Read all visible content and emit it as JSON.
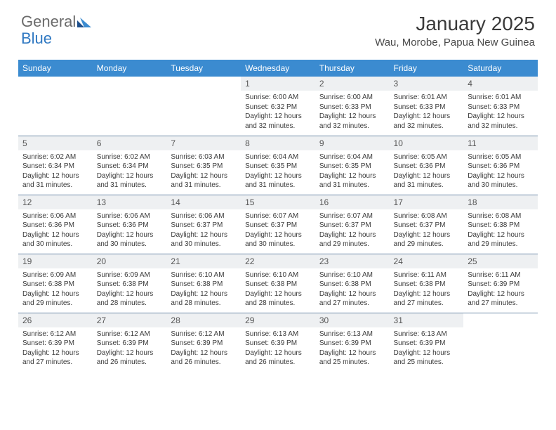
{
  "logo": {
    "text1": "General",
    "text2": "Blue"
  },
  "title": "January 2025",
  "location": "Wau, Morobe, Papua New Guinea",
  "colors": {
    "header_bg": "#3b8bd0",
    "header_text": "#ffffff",
    "daynum_bg": "#eef0f2",
    "row_border": "#6d8aa8",
    "logo_gray": "#6b6b6b",
    "logo_blue": "#2f78c2"
  },
  "weekdays": [
    "Sunday",
    "Monday",
    "Tuesday",
    "Wednesday",
    "Thursday",
    "Friday",
    "Saturday"
  ],
  "weeks": [
    [
      null,
      null,
      null,
      {
        "n": "1",
        "sr": "6:00 AM",
        "ss": "6:32 PM",
        "dl": "12 hours and 32 minutes."
      },
      {
        "n": "2",
        "sr": "6:00 AM",
        "ss": "6:33 PM",
        "dl": "12 hours and 32 minutes."
      },
      {
        "n": "3",
        "sr": "6:01 AM",
        "ss": "6:33 PM",
        "dl": "12 hours and 32 minutes."
      },
      {
        "n": "4",
        "sr": "6:01 AM",
        "ss": "6:33 PM",
        "dl": "12 hours and 32 minutes."
      }
    ],
    [
      {
        "n": "5",
        "sr": "6:02 AM",
        "ss": "6:34 PM",
        "dl": "12 hours and 31 minutes."
      },
      {
        "n": "6",
        "sr": "6:02 AM",
        "ss": "6:34 PM",
        "dl": "12 hours and 31 minutes."
      },
      {
        "n": "7",
        "sr": "6:03 AM",
        "ss": "6:35 PM",
        "dl": "12 hours and 31 minutes."
      },
      {
        "n": "8",
        "sr": "6:04 AM",
        "ss": "6:35 PM",
        "dl": "12 hours and 31 minutes."
      },
      {
        "n": "9",
        "sr": "6:04 AM",
        "ss": "6:35 PM",
        "dl": "12 hours and 31 minutes."
      },
      {
        "n": "10",
        "sr": "6:05 AM",
        "ss": "6:36 PM",
        "dl": "12 hours and 31 minutes."
      },
      {
        "n": "11",
        "sr": "6:05 AM",
        "ss": "6:36 PM",
        "dl": "12 hours and 30 minutes."
      }
    ],
    [
      {
        "n": "12",
        "sr": "6:06 AM",
        "ss": "6:36 PM",
        "dl": "12 hours and 30 minutes."
      },
      {
        "n": "13",
        "sr": "6:06 AM",
        "ss": "6:36 PM",
        "dl": "12 hours and 30 minutes."
      },
      {
        "n": "14",
        "sr": "6:06 AM",
        "ss": "6:37 PM",
        "dl": "12 hours and 30 minutes."
      },
      {
        "n": "15",
        "sr": "6:07 AM",
        "ss": "6:37 PM",
        "dl": "12 hours and 30 minutes."
      },
      {
        "n": "16",
        "sr": "6:07 AM",
        "ss": "6:37 PM",
        "dl": "12 hours and 29 minutes."
      },
      {
        "n": "17",
        "sr": "6:08 AM",
        "ss": "6:37 PM",
        "dl": "12 hours and 29 minutes."
      },
      {
        "n": "18",
        "sr": "6:08 AM",
        "ss": "6:38 PM",
        "dl": "12 hours and 29 minutes."
      }
    ],
    [
      {
        "n": "19",
        "sr": "6:09 AM",
        "ss": "6:38 PM",
        "dl": "12 hours and 29 minutes."
      },
      {
        "n": "20",
        "sr": "6:09 AM",
        "ss": "6:38 PM",
        "dl": "12 hours and 28 minutes."
      },
      {
        "n": "21",
        "sr": "6:10 AM",
        "ss": "6:38 PM",
        "dl": "12 hours and 28 minutes."
      },
      {
        "n": "22",
        "sr": "6:10 AM",
        "ss": "6:38 PM",
        "dl": "12 hours and 28 minutes."
      },
      {
        "n": "23",
        "sr": "6:10 AM",
        "ss": "6:38 PM",
        "dl": "12 hours and 27 minutes."
      },
      {
        "n": "24",
        "sr": "6:11 AM",
        "ss": "6:38 PM",
        "dl": "12 hours and 27 minutes."
      },
      {
        "n": "25",
        "sr": "6:11 AM",
        "ss": "6:39 PM",
        "dl": "12 hours and 27 minutes."
      }
    ],
    [
      {
        "n": "26",
        "sr": "6:12 AM",
        "ss": "6:39 PM",
        "dl": "12 hours and 27 minutes."
      },
      {
        "n": "27",
        "sr": "6:12 AM",
        "ss": "6:39 PM",
        "dl": "12 hours and 26 minutes."
      },
      {
        "n": "28",
        "sr": "6:12 AM",
        "ss": "6:39 PM",
        "dl": "12 hours and 26 minutes."
      },
      {
        "n": "29",
        "sr": "6:13 AM",
        "ss": "6:39 PM",
        "dl": "12 hours and 26 minutes."
      },
      {
        "n": "30",
        "sr": "6:13 AM",
        "ss": "6:39 PM",
        "dl": "12 hours and 25 minutes."
      },
      {
        "n": "31",
        "sr": "6:13 AM",
        "ss": "6:39 PM",
        "dl": "12 hours and 25 minutes."
      },
      null
    ]
  ],
  "labels": {
    "sunrise": "Sunrise:",
    "sunset": "Sunset:",
    "daylight": "Daylight:"
  }
}
